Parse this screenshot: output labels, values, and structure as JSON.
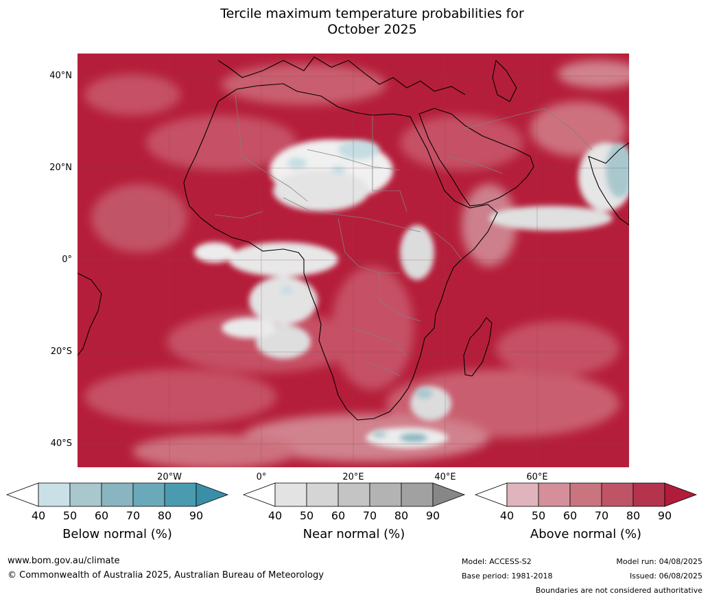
{
  "title": {
    "line1": "Tercile maximum temperature probabilities for",
    "line2": "October 2025"
  },
  "map": {
    "lat_labels": [
      "40°N",
      "20°N",
      "0°",
      "20°S",
      "40°S"
    ],
    "lon_labels": [
      "20°W",
      "0°",
      "20°E",
      "40°E",
      "60°E"
    ],
    "extent": {
      "lon_min": -40,
      "lon_max": 80,
      "lat_min": -45,
      "lat_max": 45
    },
    "grid": true,
    "colors": {
      "above_dominant": "#b51e3a",
      "above_mid": "#c8566a",
      "near_normal": "#d9d9d9",
      "below_normal": "#c4dde3",
      "coast": "#000000",
      "borders": "#808080"
    }
  },
  "colorbars": [
    {
      "title": "Below normal (%)",
      "ticks": [
        "40",
        "50",
        "60",
        "70",
        "80",
        "90"
      ],
      "colors": [
        "#c9e0e6",
        "#a9c8ce",
        "#88b5c0",
        "#6aa9b9",
        "#4b9bb0",
        "#3a8fa8"
      ],
      "extend_min": "#ffffff"
    },
    {
      "title": "Near normal (%)",
      "ticks": [
        "40",
        "50",
        "60",
        "70",
        "80",
        "90"
      ],
      "colors": [
        "#e3e3e3",
        "#d5d5d5",
        "#c4c4c4",
        "#b3b3b3",
        "#a1a1a1",
        "#878787"
      ],
      "extend_min": "#ffffff"
    },
    {
      "title": "Above normal (%)",
      "ticks": [
        "40",
        "50",
        "60",
        "70",
        "80",
        "90"
      ],
      "colors": [
        "#e0b4bc",
        "#d58f9b",
        "#c97580",
        "#bf5467",
        "#b4344e",
        "#b01c3a"
      ],
      "extend_min": "#ffffff"
    }
  ],
  "footer": {
    "url": "www.bom.gov.au/climate",
    "copyright": "© Commonwealth of Australia 2025, Australian Bureau of Meteorology",
    "model": "Model: ACCESS-S2",
    "base_period": "Base period: 1981-2018",
    "model_run": "Model run: 04/08/2025",
    "issued": "Issued: 06/08/2025",
    "disclaimer": "Boundaries are not considered authoritative"
  }
}
